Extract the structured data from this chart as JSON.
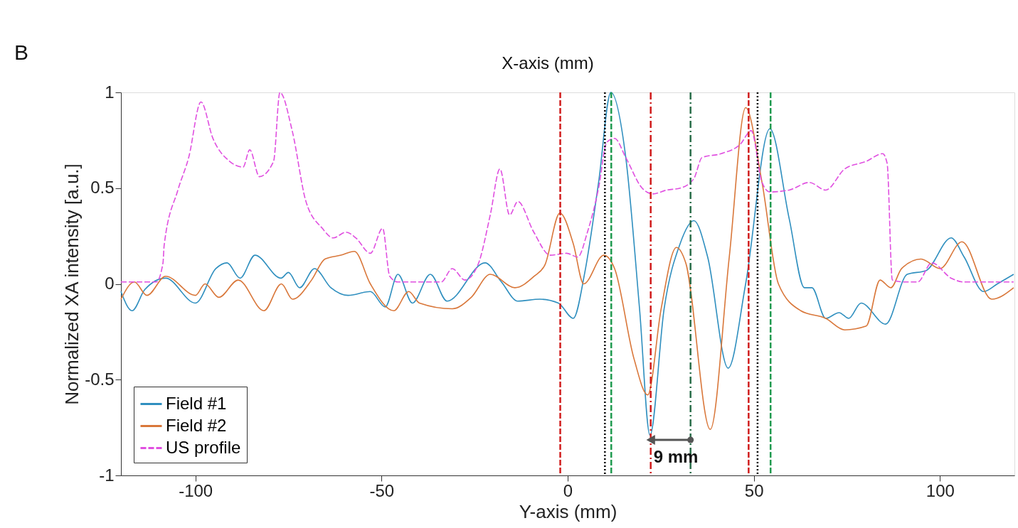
{
  "chart_data": {
    "type": "line",
    "xlabel": "Y-axis (mm)",
    "ylabel": "Normalized XA intensity [a.u.]",
    "xlim": [
      -120,
      120
    ],
    "xticks": [
      -100,
      -50,
      0,
      50,
      100
    ],
    "ylim": [
      -1,
      1
    ],
    "yticks": [
      -1,
      -0.5,
      0,
      0.5,
      1
    ],
    "grid": false,
    "legend": "bottom left",
    "marker": "none",
    "annotations": [
      "B",
      "X-axis (mm)",
      "9 mm"
    ],
    "ref_lines": [
      {
        "axis": "x",
        "value": -2,
        "color": "#d01c1c",
        "line_style": "dashed"
      },
      {
        "axis": "x",
        "value": 10,
        "color": "#000000",
        "line_style": "dotted"
      },
      {
        "axis": "x",
        "value": 11.7,
        "color": "#1f9a4f",
        "line_style": "dashed"
      },
      {
        "axis": "x",
        "value": 22.3,
        "color": "#d01c1c",
        "line_style": "dashdot"
      },
      {
        "axis": "x",
        "value": 33,
        "color": "#2a6e4a",
        "line_style": "dashdot"
      },
      {
        "axis": "x",
        "value": 48.6,
        "color": "#d01c1c",
        "line_style": "dashed"
      },
      {
        "axis": "x",
        "value": 51,
        "color": "#000000",
        "line_style": "dotted"
      },
      {
        "axis": "x",
        "value": 54.5,
        "color": "#1f9a4f",
        "line_style": "dashed"
      }
    ],
    "series": [
      {
        "name": "Field #1",
        "color": "#2f8fbf",
        "line_style": "solid",
        "x": [
          -120,
          -117,
          -113.6,
          -108,
          -100,
          -94.5,
          -91.5,
          -88,
          -84,
          -77,
          -75,
          -72,
          -68,
          -63.6,
          -59,
          -53,
          -49,
          -45.6,
          -41.7,
          -36.9,
          -32.4,
          -22.2,
          -17.8,
          -13.4,
          -7.5,
          -2.5,
          1.5,
          4.6,
          8.3,
          11.6,
          15.6,
          19.3,
          22.1,
          25.9,
          30.2,
          33.9,
          37.6,
          43.1,
          47.8,
          54.3,
          59.5,
          63.6,
          65.6,
          69.3,
          72.9,
          75.5,
          78.8,
          85.4,
          91.2,
          96.3,
          103,
          106.5,
          111.7,
          115.4,
          119.8
        ],
        "values": [
          -0.04,
          -0.14,
          -0.03,
          0.03,
          -0.1,
          0.08,
          0.11,
          0.03,
          0.15,
          0.03,
          0.06,
          -0.02,
          0.08,
          -0.02,
          -0.06,
          -0.04,
          -0.12,
          0.05,
          -0.1,
          0.05,
          -0.09,
          0.11,
          0.01,
          -0.09,
          -0.08,
          -0.1,
          -0.18,
          0.06,
          0.53,
          1.0,
          0.66,
          -0.13,
          -0.79,
          -0.13,
          0.21,
          0.33,
          0.14,
          -0.44,
          0.0,
          0.81,
          0.34,
          -0.02,
          -0.02,
          -0.18,
          -0.15,
          -0.18,
          -0.1,
          -0.21,
          0.05,
          0.07,
          0.24,
          0.14,
          -0.04,
          0.0,
          0.05
        ]
      },
      {
        "name": "Field #2",
        "color": "#d9773a",
        "line_style": "solid",
        "x": [
          -120,
          -116.4,
          -113,
          -108,
          -100,
          -97.4,
          -93.7,
          -88.5,
          -81.6,
          -76.9,
          -73.9,
          -68.8,
          -65.2,
          -60.9,
          -57.3,
          -53,
          -46.7,
          -42.7,
          -39.8,
          -31,
          -25.9,
          -20.8,
          -14.2,
          -9,
          -6.1,
          -2.1,
          1.5,
          4.3,
          9.7,
          12.6,
          17.8,
          21.5,
          25.1,
          29.2,
          31.7,
          38.3,
          43.4,
          47.8,
          52.2,
          56.6,
          62.6,
          69.3,
          74.4,
          80.2,
          83.9,
          86.8,
          89.7,
          94.9,
          100,
          105.9,
          113.9,
          119.8
        ],
        "values": [
          -0.08,
          0.01,
          -0.06,
          0.04,
          -0.06,
          0.0,
          -0.07,
          0.02,
          -0.14,
          0.0,
          -0.08,
          0.02,
          0.13,
          0.15,
          0.17,
          0.0,
          -0.14,
          -0.04,
          -0.1,
          -0.13,
          -0.07,
          0.05,
          -0.02,
          0.04,
          0.1,
          0.37,
          0.21,
          0.0,
          0.15,
          0.08,
          -0.39,
          -0.58,
          -0.13,
          0.19,
          0.11,
          -0.76,
          0.14,
          0.92,
          0.53,
          0.0,
          -0.14,
          -0.18,
          -0.24,
          -0.22,
          0.02,
          -0.02,
          0.08,
          0.13,
          0.08,
          0.22,
          -0.08,
          -0.02
        ]
      },
      {
        "name": "US profile",
        "color": "#e04fe0",
        "line_style": "dashed",
        "x": [
          -120,
          -110.5,
          -108.7,
          -108.4,
          -104.7,
          -101.8,
          -98.5,
          -95.3,
          -90.8,
          -87.2,
          -85.4,
          -82.8,
          -79,
          -77.3,
          -74,
          -70.3,
          -65.9,
          -63,
          -59.5,
          -56.9,
          -53,
          -49.7,
          -47.8,
          -45.6,
          -34,
          -31,
          -27.6,
          -24.1,
          -20.8,
          -18.2,
          -15.6,
          -13.4,
          -9.1,
          -4.7,
          -0.3,
          2.7,
          5.3,
          8.3,
          10.5,
          12.6,
          15.6,
          20,
          22.9,
          26.6,
          30.2,
          33.9,
          36.1,
          41.2,
          46.4,
          49.3,
          52.2,
          54.3,
          59.5,
          64.9,
          69.3,
          74.4,
          80.2,
          84.6,
          85.8,
          87.2,
          90.5,
          94,
          97.8,
          103,
          106.5,
          119.8
        ],
        "values": [
          0.01,
          0.01,
          0.11,
          0.2,
          0.49,
          0.66,
          0.95,
          0.76,
          0.64,
          0.61,
          0.7,
          0.56,
          0.64,
          1.0,
          0.8,
          0.43,
          0.29,
          0.24,
          0.27,
          0.24,
          0.16,
          0.29,
          0.04,
          0.01,
          0.01,
          0.08,
          0.02,
          0.1,
          0.36,
          0.6,
          0.36,
          0.43,
          0.27,
          0.15,
          0.16,
          0.14,
          0.27,
          0.5,
          0.74,
          0.76,
          0.66,
          0.5,
          0.47,
          0.49,
          0.5,
          0.55,
          0.66,
          0.68,
          0.73,
          0.8,
          0.53,
          0.48,
          0.49,
          0.53,
          0.49,
          0.6,
          0.64,
          0.68,
          0.63,
          0.02,
          0.01,
          0.01,
          0.11,
          0.03,
          0.01,
          0.01
        ]
      }
    ]
  }
}
